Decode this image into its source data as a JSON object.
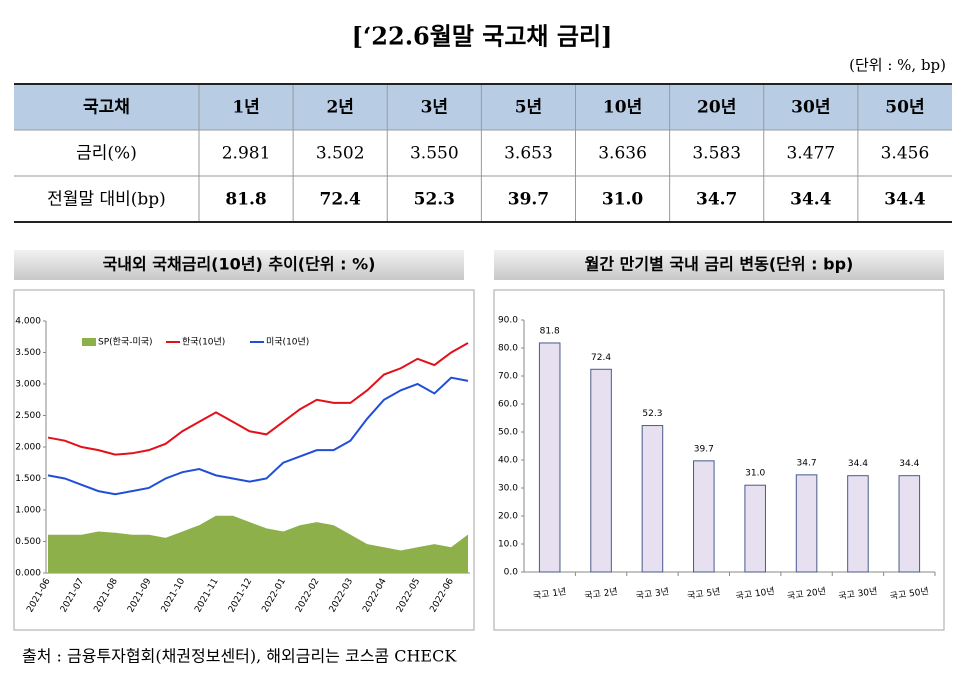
{
  "header": {
    "title": "[‘22.6월말 국고채 금리]",
    "unit": "(단위 : %, bp)"
  },
  "table": {
    "columns": [
      "국고채",
      "1년",
      "2년",
      "3년",
      "5년",
      "10년",
      "20년",
      "30년",
      "50년"
    ],
    "rows": [
      [
        "금리(%)",
        "2.981",
        "3.502",
        "3.550",
        "3.653",
        "3.636",
        "3.583",
        "3.477",
        "3.456"
      ],
      [
        "전월말 대비(bp)",
        "81.8",
        "72.4",
        "52.3",
        "39.7",
        "31.0",
        "34.7",
        "34.4",
        "34.4"
      ]
    ]
  },
  "chart_data": [
    {
      "type": "line",
      "title": "국내외 국채금리(10년) 추이(단위 : %)",
      "categories": [
        "2021-06",
        null,
        "2021-07",
        null,
        "2021-08",
        null,
        "2021-09",
        null,
        "2021-10",
        null,
        "2021-11",
        null,
        "2021-12",
        null,
        "2022-01",
        null,
        "2022-02",
        null,
        "2022-03",
        null,
        "2022-04",
        null,
        "2022-05",
        null,
        "2022-06",
        null
      ],
      "series": [
        {
          "name": "SP(한국-미국)",
          "type": "area",
          "color": "#8db04a",
          "values": [
            0.6,
            0.6,
            0.6,
            0.65,
            0.63,
            0.6,
            0.6,
            0.55,
            0.65,
            0.75,
            0.9,
            0.9,
            0.8,
            0.7,
            0.65,
            0.75,
            0.8,
            0.75,
            0.6,
            0.45,
            0.4,
            0.35,
            0.4,
            0.45,
            0.4,
            0.6
          ]
        },
        {
          "name": "한국(10년)",
          "type": "line",
          "color": "#e3101a",
          "values": [
            2.15,
            2.1,
            2.0,
            1.95,
            1.88,
            1.9,
            1.95,
            2.05,
            2.25,
            2.4,
            2.55,
            2.4,
            2.25,
            2.2,
            2.4,
            2.6,
            2.75,
            2.7,
            2.7,
            2.9,
            3.15,
            3.25,
            3.4,
            3.3,
            3.5,
            3.65
          ]
        },
        {
          "name": "미국(10년)",
          "type": "line",
          "color": "#1f4fd8",
          "values": [
            1.55,
            1.5,
            1.4,
            1.3,
            1.25,
            1.3,
            1.35,
            1.5,
            1.6,
            1.65,
            1.55,
            1.5,
            1.45,
            1.5,
            1.75,
            1.85,
            1.95,
            1.95,
            2.1,
            2.45,
            2.75,
            2.9,
            3.0,
            2.85,
            3.1,
            3.05
          ]
        }
      ],
      "ylim": [
        0,
        4
      ],
      "yticks": [
        {
          "value": 0,
          "label": "0.000"
        },
        {
          "value": 0.5,
          "label": "0.500"
        },
        {
          "value": 1,
          "label": "1.000"
        },
        {
          "value": 1.5,
          "label": "1.500"
        },
        {
          "value": 2,
          "label": "2.000"
        },
        {
          "value": 2.5,
          "label": "2.500"
        },
        {
          "value": 3,
          "label": "3.000"
        },
        {
          "value": 3.5,
          "label": "3.500"
        },
        {
          "value": 4,
          "label": "4.000"
        }
      ],
      "grid": false,
      "legend": "top-left"
    },
    {
      "type": "bar",
      "title": "월간 만기별 국내 금리 변동(단위 : bp)",
      "categories": [
        "국고 1년",
        "국고 2년",
        "국고 3년",
        "국고 5년",
        "국고 10년",
        "국고 20년",
        "국고 30년",
        "국고 50년"
      ],
      "values": [
        81.8,
        72.4,
        52.3,
        39.7,
        31.0,
        34.7,
        34.4,
        34.4
      ],
      "value_labels": [
        "81.8",
        "72.4",
        "52.3",
        "39.7",
        "31.0",
        "34.7",
        "34.4",
        "34.4"
      ],
      "color": "#e6e0f0",
      "ylim": [
        0,
        90
      ],
      "yticks": [
        {
          "value": 0,
          "label": "0.0"
        },
        {
          "value": 10,
          "label": "10.0"
        },
        {
          "value": 20,
          "label": "20.0"
        },
        {
          "value": 30,
          "label": "30.0"
        },
        {
          "value": 40,
          "label": "40.0"
        },
        {
          "value": 50,
          "label": "50.0"
        },
        {
          "value": 60,
          "label": "60.0"
        },
        {
          "value": 70,
          "label": "70.0"
        },
        {
          "value": 80,
          "label": "80.0"
        },
        {
          "value": 90,
          "label": "90.0"
        }
      ],
      "grid": false
    }
  ],
  "footer": {
    "source": "출처 : 금융투자협회(채권정보센터), 해외금리는 코스콤 CHECK"
  }
}
